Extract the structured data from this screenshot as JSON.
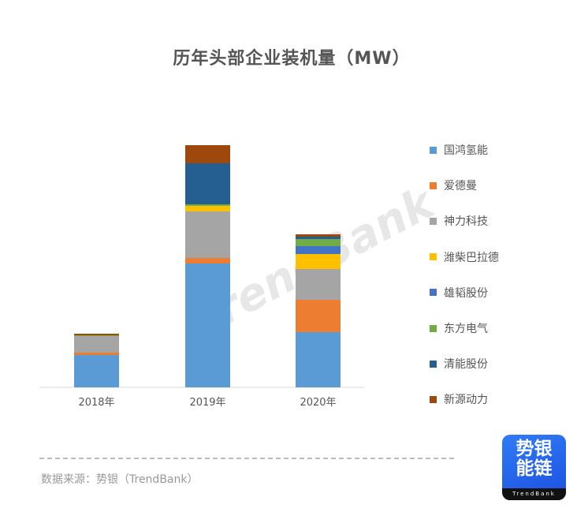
{
  "chart_data": {
    "type": "bar",
    "stacked": true,
    "title": "历年头部企业装机量（MW）",
    "xlabel": "",
    "ylabel": "",
    "categories": [
      "2018年",
      "2019年",
      "2020年"
    ],
    "ylim": [
      0,
      320
    ],
    "grid": false,
    "legend_position": "right",
    "series": [
      {
        "name": "国鸿氢能",
        "color": "#5b9bd5",
        "values": [
          41,
          157,
          70
        ]
      },
      {
        "name": "爱德曼",
        "color": "#ed7d31",
        "values": [
          3,
          7,
          41
        ]
      },
      {
        "name": "神力科技",
        "color": "#a5a5a5",
        "values": [
          21,
          59,
          39
        ]
      },
      {
        "name": "潍柴巴拉德",
        "color": "#ffc000",
        "values": [
          0,
          7,
          19
        ]
      },
      {
        "name": "雄韬股份",
        "color": "#4472c4",
        "values": [
          0,
          0,
          10
        ]
      },
      {
        "name": "东方电气",
        "color": "#70ad47",
        "values": [
          1,
          2,
          9
        ]
      },
      {
        "name": "清能股份",
        "color": "#255e91",
        "values": [
          0,
          52,
          3
        ]
      },
      {
        "name": "新源动力",
        "color": "#9e480e",
        "values": [
          2,
          23,
          3
        ]
      }
    ]
  },
  "footer": {
    "source": "数据来源：势银（TrendBank）"
  },
  "logo": {
    "line1": "势银",
    "line2": "能链",
    "brand": "TrendBank"
  },
  "watermark": "TrendBank"
}
